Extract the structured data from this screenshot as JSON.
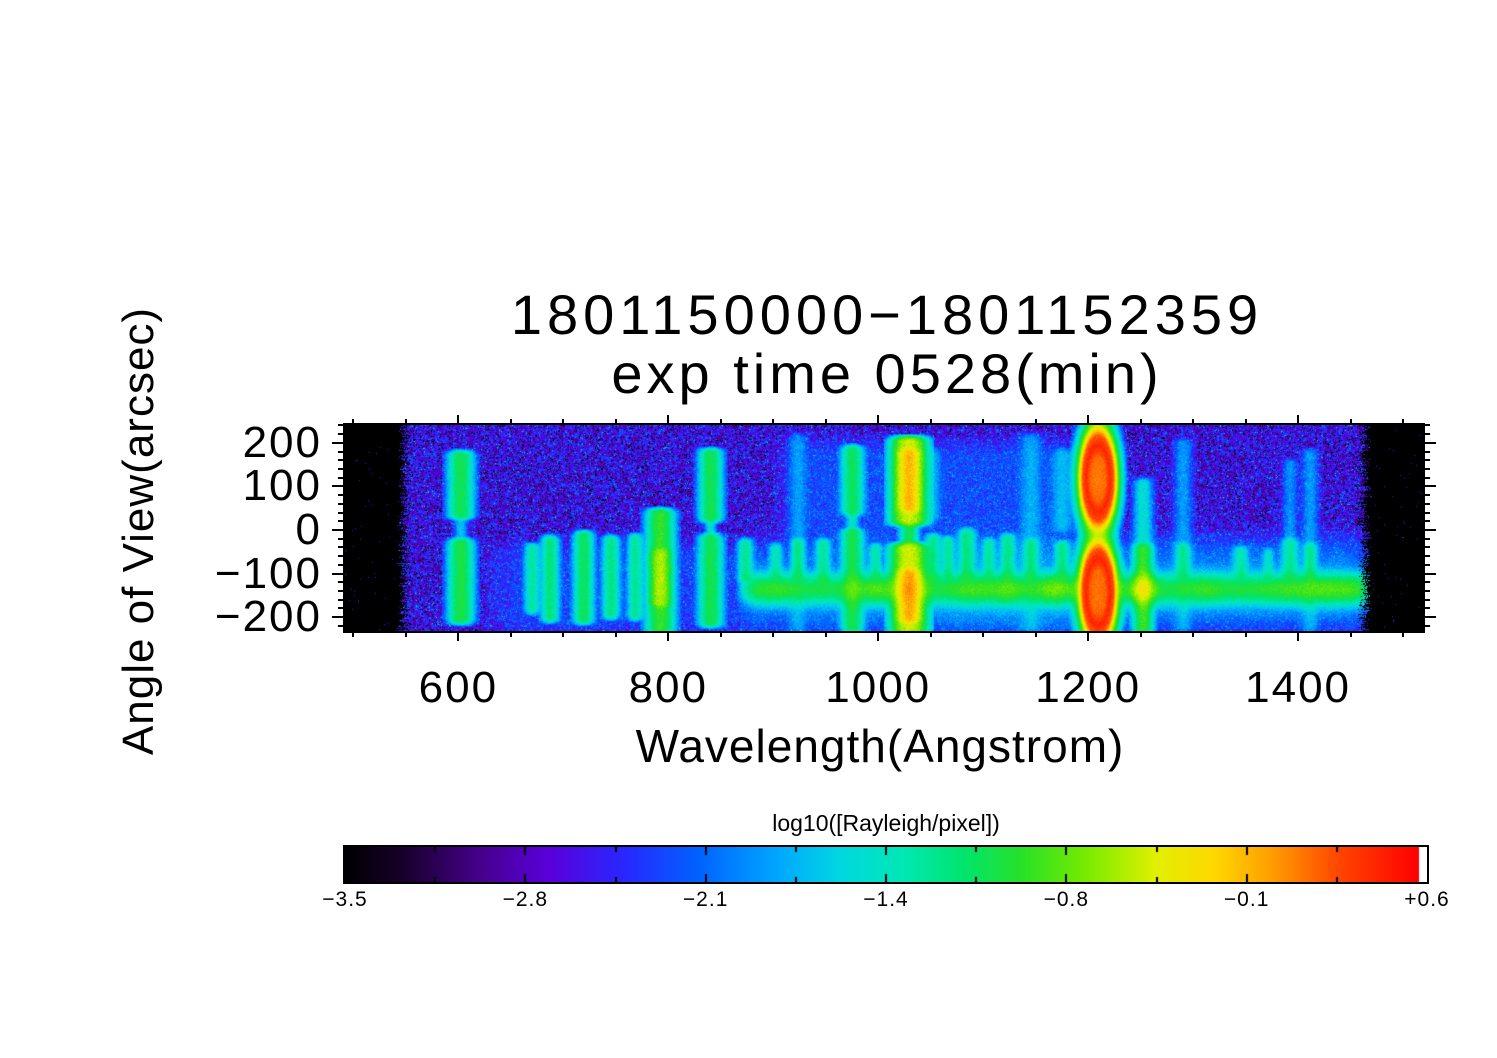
{
  "title": {
    "line1": "1801150000−1801152359",
    "line2": "exp time 0528(min)"
  },
  "axes": {
    "x": {
      "label": "Wavelength(Angstrom)",
      "unit": "Angstrom",
      "range": [
        492,
        1519
      ],
      "major_ticks": [
        {
          "value": 600,
          "label": "600"
        },
        {
          "value": 800,
          "label": "800"
        },
        {
          "value": 1000,
          "label": "1000"
        },
        {
          "value": 1200,
          "label": "1200"
        },
        {
          "value": 1400,
          "label": "1400"
        }
      ],
      "minor_step": 50
    },
    "y": {
      "label": "Angle of View(arcsec)",
      "unit": "arcsec",
      "range": [
        -232,
        241
      ],
      "major_ticks": [
        {
          "value": 200,
          "label": "200"
        },
        {
          "value": 100,
          "label": "100"
        },
        {
          "value": 0,
          "label": "0"
        },
        {
          "value": -100,
          "label": "−100"
        },
        {
          "value": -200,
          "label": "−200"
        }
      ],
      "minor_step": 20
    }
  },
  "colorbar": {
    "label": "log10([Rayleigh/pixel])",
    "min": -3.5,
    "max": 0.6,
    "tick_labels": [
      "−3.5",
      "−2.8",
      "−2.1",
      "−1.4",
      "−0.8",
      "−0.1",
      "+0.6"
    ],
    "end_bin_color": "#ffffff"
  },
  "chart_data": {
    "type": "heatmap",
    "title": "1801150000−1801152359",
    "subtitle": "exp time 0528(min)",
    "xlabel": "Wavelength(Angstrom)",
    "ylabel": "Angle of View(arcsec)",
    "colorbar_label": "log10([Rayleigh/pixel])",
    "colorbar_range": [
      -3.5,
      0.6
    ],
    "xlim": [
      492,
      1519
    ],
    "ylim": [
      -232,
      241
    ],
    "background_log_intensity": -2.6,
    "no_data_margins_wavelength": [
      [
        492,
        545
      ],
      [
        1466,
        1519
      ]
    ],
    "colormap": [
      [
        0.0,
        "#000000"
      ],
      [
        0.055,
        "#19002e"
      ],
      [
        0.125,
        "#46008c"
      ],
      [
        0.19,
        "#5a00dc"
      ],
      [
        0.26,
        "#2828ff"
      ],
      [
        0.33,
        "#0064ff"
      ],
      [
        0.4,
        "#00a5ff"
      ],
      [
        0.46,
        "#00d7e1"
      ],
      [
        0.52,
        "#00e8b4"
      ],
      [
        0.575,
        "#00e46e"
      ],
      [
        0.63,
        "#28e128"
      ],
      [
        0.69,
        "#78eb00"
      ],
      [
        0.755,
        "#e1f000"
      ],
      [
        0.81,
        "#ffd700"
      ],
      [
        0.865,
        "#ff9b00"
      ],
      [
        0.925,
        "#ff4600"
      ],
      [
        1.0,
        "#ff0000"
      ]
    ],
    "horizontal_band": {
      "wl": [
        872,
        1465
      ],
      "center_arcsec": -135,
      "sigma_arcsec": 19,
      "base_logI": -1.08,
      "halo_sigma_arcsec": 50,
      "halo_logI": -2.15,
      "knots": [
        {
          "wl": 902,
          "amp": 0.15,
          "sigma": 12
        },
        {
          "wl": 997,
          "amp": 0.25,
          "sigma": 10
        },
        {
          "wl": 1029,
          "amp": 0.4,
          "sigma": 10
        },
        {
          "wl": 1090,
          "amp": 0.2,
          "sigma": 15
        },
        {
          "wl": 1123,
          "amp": 0.25,
          "sigma": 10
        },
        {
          "wl": 1168,
          "amp": 0.35,
          "sigma": 12
        },
        {
          "wl": 1252,
          "amp": 0.7,
          "sigma": 8
        },
        {
          "wl": 1310,
          "amp": 0.15,
          "sigma": 12
        },
        {
          "wl": 1425,
          "amp": 0.25,
          "sigma": 40
        }
      ]
    },
    "lyman_alpha_feature": {
      "wavelength": 1209,
      "rx_angstrom": 15,
      "lobes": [
        {
          "center_arcsec": 119,
          "ry_arcsec": 101
        },
        {
          "center_arcsec": -142,
          "ry_arcsec": 101
        }
      ],
      "radial_log_profile": [
        [
          0,
          0.12
        ],
        [
          0.5,
          0.2
        ],
        [
          0.75,
          0.45
        ],
        [
          0.98,
          0.25
        ],
        [
          1.12,
          -0.2
        ],
        [
          1.3,
          -0.8
        ],
        [
          1.55,
          -1.45
        ],
        [
          1.8,
          -2.1
        ],
        [
          2.0,
          -3.2
        ]
      ]
    },
    "emission_features": [
      {
        "wavelength": 602,
        "width": 13,
        "segments": [
          {
            "top": 179,
            "bottom": 30,
            "logI": -1.05
          },
          {
            "top": -23,
            "bottom": -211,
            "logI": -1.0
          },
          {
            "top": 30,
            "bottom": -23,
            "logI": -1.8,
            "width": 7
          }
        ]
      },
      {
        "wavelength": 670,
        "width": 8,
        "segments": [
          {
            "top": -34,
            "bottom": -188,
            "logI": -1.35
          }
        ]
      },
      {
        "wavelength": 687,
        "width": 9,
        "segments": [
          {
            "top": -16,
            "bottom": -207,
            "logI": -1.2
          }
        ]
      },
      {
        "wavelength": 719,
        "width": 10,
        "segments": [
          {
            "top": -5,
            "bottom": -211,
            "logI": -1.1
          }
        ]
      },
      {
        "wavelength": 745,
        "width": 9,
        "segments": [
          {
            "top": -16,
            "bottom": -200,
            "logI": -1.25
          }
        ]
      },
      {
        "wavelength": 768,
        "width": 8,
        "segments": [
          {
            "top": -12,
            "bottom": -202,
            "logI": -1.3
          }
        ]
      },
      {
        "wavelength": 792,
        "width": 14,
        "segments": [
          {
            "top": 46,
            "bottom": -232,
            "logI": -0.9
          },
          {
            "top": -46,
            "bottom": -172,
            "logI": -0.75,
            "width": 10
          }
        ]
      },
      {
        "wavelength": 840,
        "width": 12,
        "segments": [
          {
            "top": 184,
            "bottom": 23,
            "logI": -1.05
          },
          {
            "top": -12,
            "bottom": -218,
            "logI": -1.05
          },
          {
            "top": 23,
            "bottom": -12,
            "logI": -1.6,
            "width": 6
          }
        ]
      },
      {
        "wavelength": 873,
        "width": 8,
        "segments": [
          {
            "top": -23,
            "bottom": -115,
            "logI": -1.3
          }
        ]
      },
      {
        "wavelength": 902,
        "width": 7,
        "segments": [
          {
            "top": -34,
            "bottom": -108,
            "logI": -1.45
          }
        ]
      },
      {
        "wavelength": 923,
        "width": 10,
        "segments": [
          {
            "top": 218,
            "bottom": -230,
            "logI": -2.05
          },
          {
            "top": -23,
            "bottom": -108,
            "logI": -1.3,
            "width": 7
          }
        ]
      },
      {
        "wavelength": 947,
        "width": 8,
        "segments": [
          {
            "top": -23,
            "bottom": -119,
            "logI": -1.35
          }
        ]
      },
      {
        "wavelength": 975,
        "width": 11,
        "segments": [
          {
            "top": 191,
            "bottom": 39,
            "logI": -1.1
          },
          {
            "top": 0,
            "bottom": -230,
            "logI": -1.05
          },
          {
            "top": 39,
            "bottom": 0,
            "logI": -1.5,
            "width": 6
          }
        ]
      },
      {
        "wavelength": 997,
        "width": 7,
        "segments": [
          {
            "top": -34,
            "bottom": -108,
            "logI": -1.4
          }
        ]
      },
      {
        "wavelength": 1029,
        "width": 17,
        "segments": [
          {
            "top": 211,
            "bottom": 16,
            "logI": -0.45
          },
          {
            "top": -34,
            "bottom": -232,
            "logI": -0.42
          },
          {
            "top": 16,
            "bottom": -34,
            "logI": -1.05,
            "width": 9
          },
          {
            "top": 184,
            "bottom": 46,
            "logI": -0.28,
            "width": 11
          },
          {
            "top": -92,
            "bottom": -207,
            "logI": -0.22,
            "width": 11
          }
        ]
      },
      {
        "wavelength": 1052,
        "width": 8,
        "segments": [
          {
            "top": -12,
            "bottom": -115,
            "logI": -1.3
          },
          {
            "top": 184,
            "bottom": 23,
            "logI": -2.0
          }
        ]
      },
      {
        "wavelength": 1066,
        "width": 7,
        "segments": [
          {
            "top": -18,
            "bottom": -108,
            "logI": -1.35
          }
        ]
      },
      {
        "wavelength": 1084,
        "width": 9,
        "segments": [
          {
            "top": 0,
            "bottom": -110,
            "logI": -1.25
          }
        ]
      },
      {
        "wavelength": 1105,
        "width": 7,
        "segments": [
          {
            "top": -23,
            "bottom": -108,
            "logI": -1.4
          }
        ]
      },
      {
        "wavelength": 1123,
        "width": 8,
        "segments": [
          {
            "top": -12,
            "bottom": -110,
            "logI": -1.3
          }
        ]
      },
      {
        "wavelength": 1145,
        "width": 12,
        "segments": [
          {
            "top": 218,
            "bottom": -230,
            "logI": -2.0
          },
          {
            "top": -23,
            "bottom": -110,
            "logI": -1.35,
            "width": 8
          }
        ]
      },
      {
        "wavelength": 1175,
        "width": 12,
        "segments": [
          {
            "top": 184,
            "bottom": 0,
            "logI": -1.9
          },
          {
            "top": -28,
            "bottom": -108,
            "logI": -1.3,
            "width": 8
          }
        ]
      },
      {
        "wavelength": 1252,
        "width": 10,
        "segments": [
          {
            "top": 115,
            "bottom": -232,
            "logI": -1.55
          },
          {
            "top": -34,
            "bottom": -232,
            "logI": -1.0,
            "width": 10
          }
        ]
      },
      {
        "wavelength": 1290,
        "width": 10,
        "segments": [
          {
            "top": 207,
            "bottom": -230,
            "logI": -2.0
          },
          {
            "top": -34,
            "bottom": -108,
            "logI": -1.4,
            "width": 8
          }
        ]
      },
      {
        "wavelength": 1345,
        "width": 8,
        "segments": [
          {
            "top": -41,
            "bottom": -108,
            "logI": -1.45
          }
        ]
      },
      {
        "wavelength": 1371,
        "width": 6,
        "segments": [
          {
            "top": -46,
            "bottom": -108,
            "logI": -1.6
          }
        ]
      },
      {
        "wavelength": 1392,
        "width": 9,
        "segments": [
          {
            "top": -23,
            "bottom": -110,
            "logI": -1.35
          },
          {
            "top": 161,
            "bottom": -23,
            "logI": -2.05,
            "width": 8
          }
        ]
      },
      {
        "wavelength": 1411,
        "width": 9,
        "segments": [
          {
            "top": 184,
            "bottom": -230,
            "logI": -2.0
          },
          {
            "top": -34,
            "bottom": -110,
            "logI": -1.4,
            "width": 7
          }
        ]
      }
    ],
    "diffuse_glow": [
      {
        "wl": [
          920,
          1190
        ],
        "arcsec": [
          -70,
          195
        ],
        "logI": -2.5
      },
      {
        "wl": [
          1060,
          1460
        ],
        "arcsec": [
          -210,
          -26
        ],
        "logI": -2.45
      },
      {
        "wl": [
          640,
          900
        ],
        "arcsec": [
          -230,
          -40
        ],
        "logI": -2.6
      },
      {
        "wl": [
          920,
          1240
        ],
        "arcsec": [
          -230,
          -120
        ],
        "logI": -2.5
      }
    ]
  }
}
